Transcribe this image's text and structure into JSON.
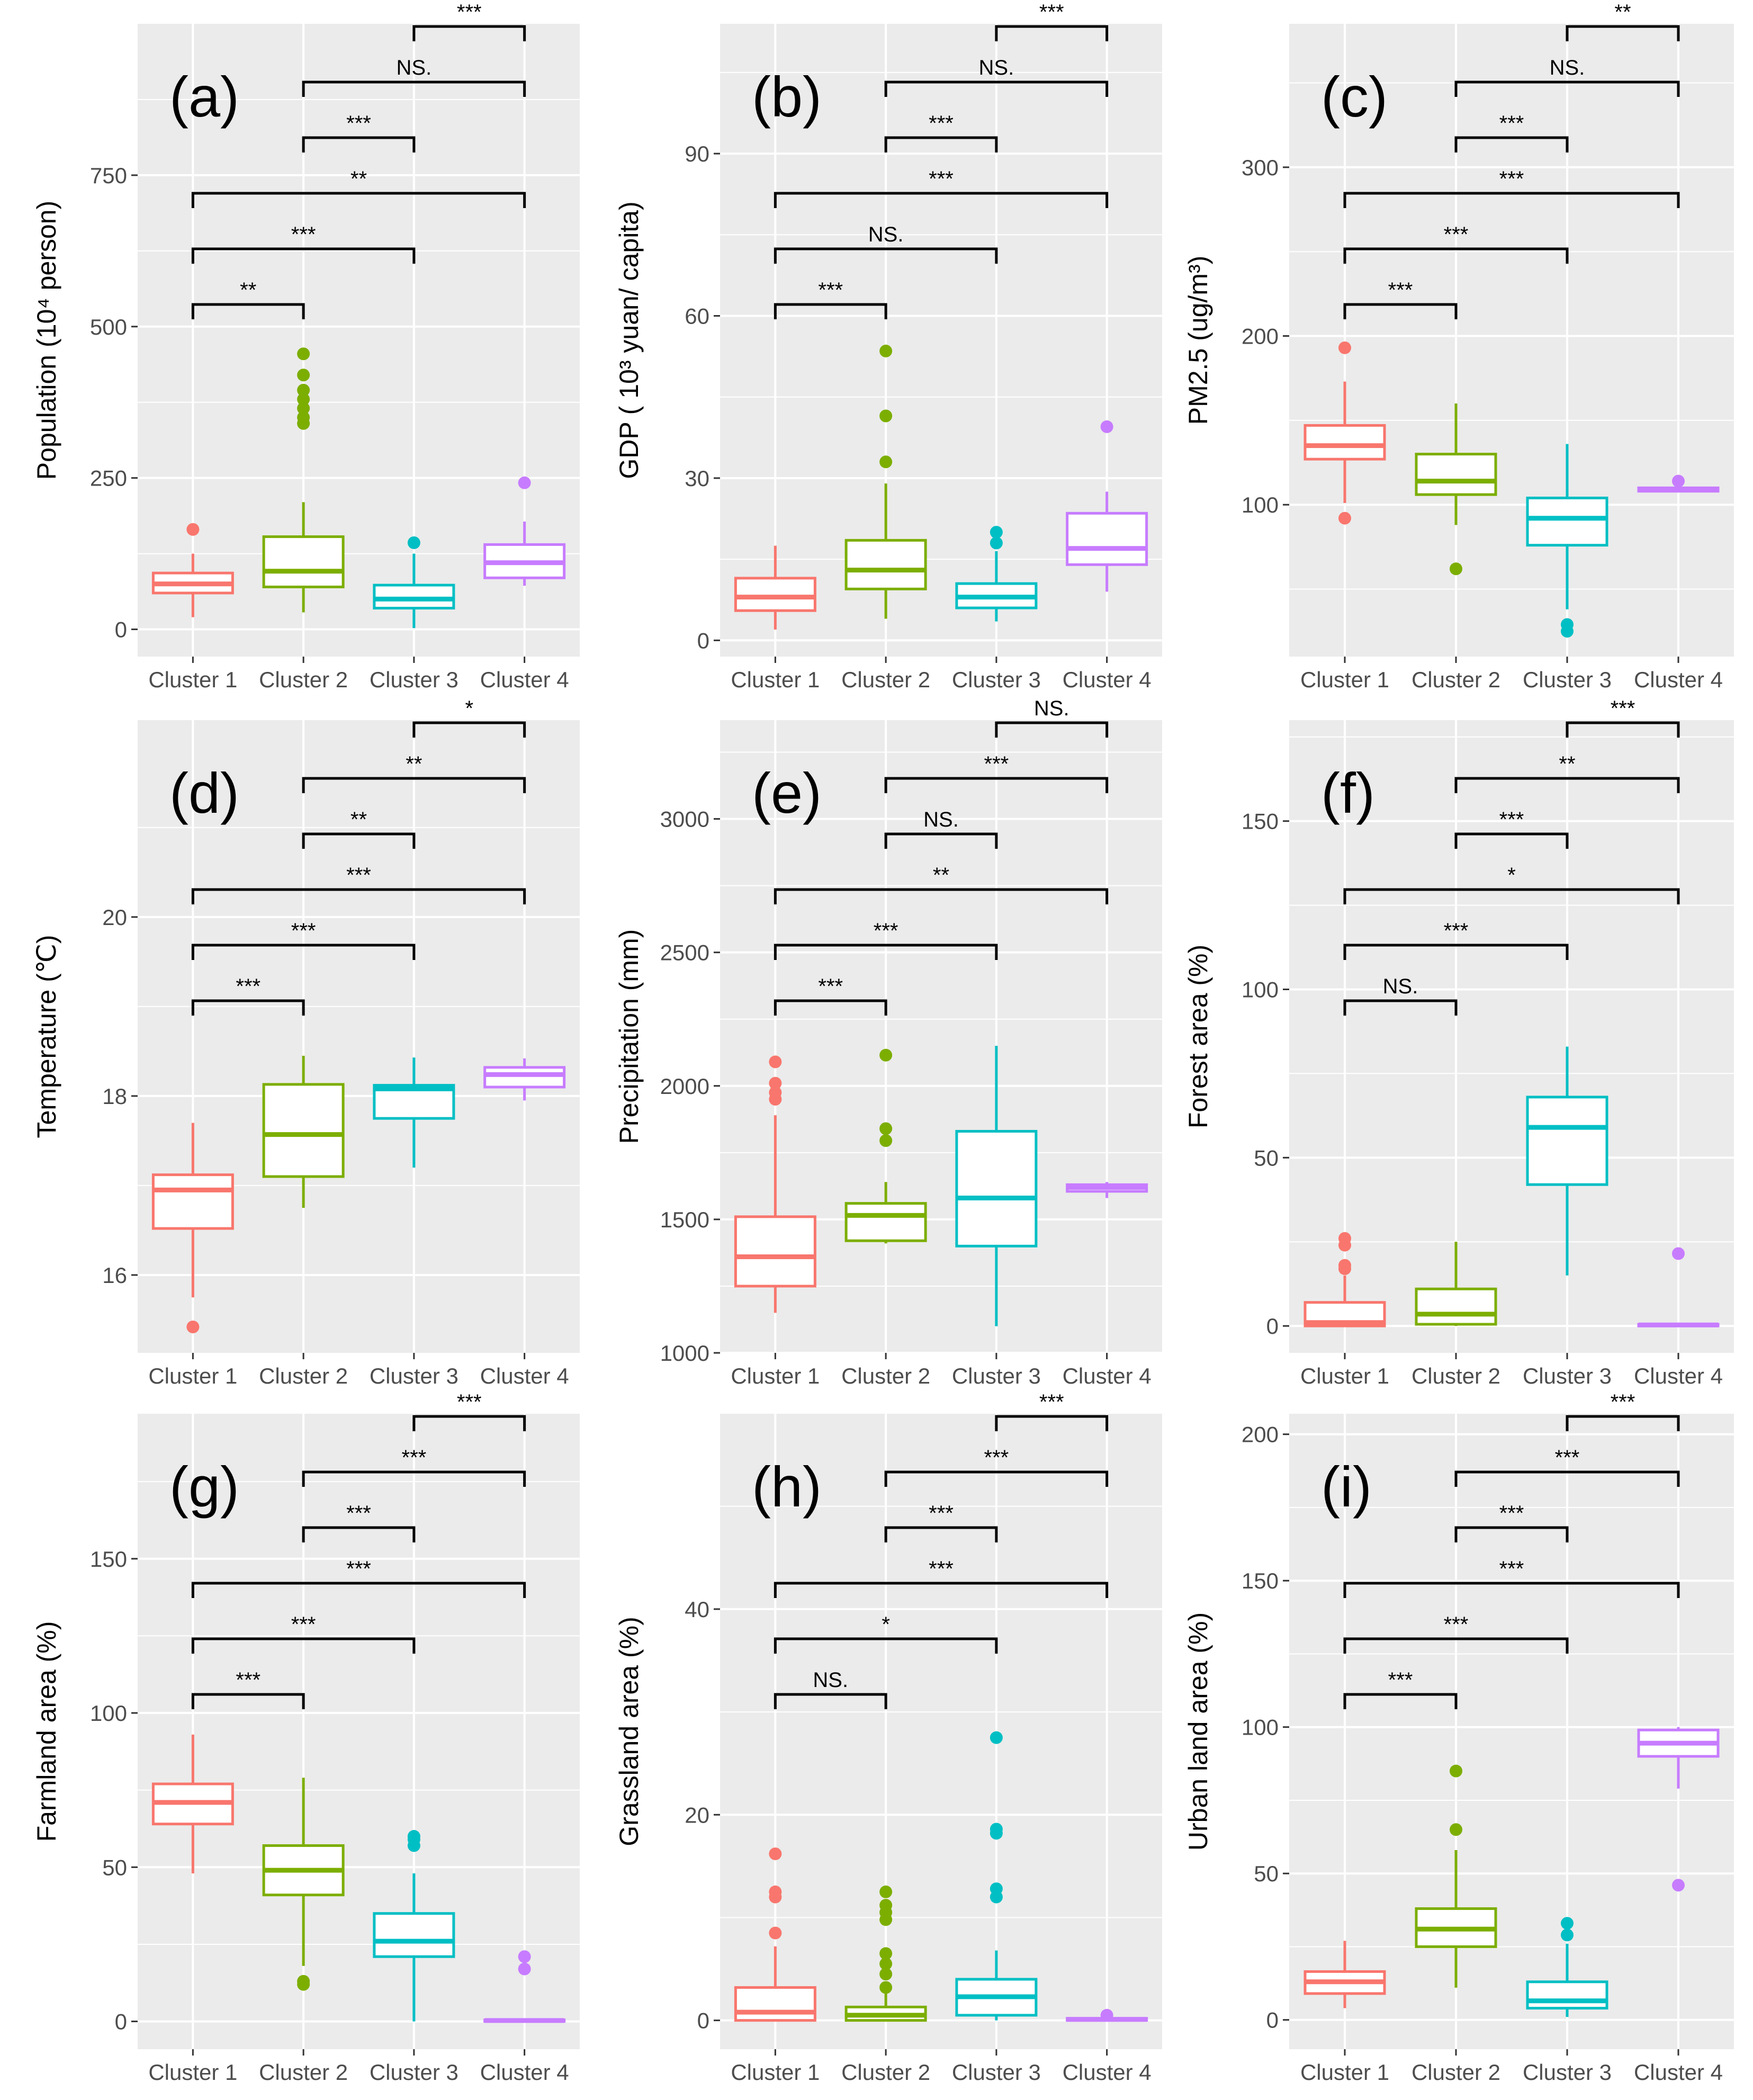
{
  "chart_data": {
    "type": "boxplot",
    "layout": "3x3 grid of box plots",
    "categories": [
      "Cluster 1",
      "Cluster 2",
      "Cluster 3",
      "Cluster 4"
    ],
    "colors": [
      "#f8766d",
      "#7cae00",
      "#00bfc4",
      "#c77cff"
    ],
    "panels": [
      {
        "id": "a",
        "label": "(a)",
        "ylabel": "Population (10⁴ person)",
        "ylim": [
          -45,
          1000
        ],
        "ticks": [
          0,
          250,
          500,
          750
        ],
        "tick_labels": [
          "0",
          "250",
          "500",
          "750"
        ],
        "boxes": [
          {
            "q1": 60,
            "median": 75,
            "q3": 93,
            "lower": 20,
            "upper": 125,
            "outliers": [
              165
            ]
          },
          {
            "q1": 70,
            "median": 96,
            "q3": 153,
            "lower": 28,
            "upper": 210,
            "outliers": [
              340,
              350,
              365,
              380,
              395,
              420,
              455
            ]
          },
          {
            "q1": 35,
            "median": 50,
            "q3": 73,
            "lower": 2,
            "upper": 125,
            "outliers": [
              143
            ]
          },
          {
            "q1": 85,
            "median": 110,
            "q3": 140,
            "lower": 72,
            "upper": 178,
            "outliers": [
              242
            ]
          }
        ],
        "comparisons": [
          {
            "groups": [
              1,
              2
            ],
            "label": "**",
            "level": 1
          },
          {
            "groups": [
              1,
              3
            ],
            "label": "***",
            "level": 2
          },
          {
            "groups": [
              1,
              4
            ],
            "label": "**",
            "level": 3
          },
          {
            "groups": [
              2,
              3
            ],
            "label": "***",
            "level": 4
          },
          {
            "groups": [
              2,
              4
            ],
            "label": "NS.",
            "level": 5
          },
          {
            "groups": [
              3,
              4
            ],
            "label": "***",
            "level": 6
          }
        ]
      },
      {
        "id": "b",
        "label": "(b)",
        "ylabel": "GDP ( 10³ yuan/ capita)",
        "ylim": [
          -3,
          114
        ],
        "ticks": [
          0,
          30,
          60,
          90
        ],
        "tick_labels": [
          "0",
          "30",
          "60",
          "90"
        ],
        "boxes": [
          {
            "q1": 5.5,
            "median": 8,
            "q3": 11.5,
            "lower": 2,
            "upper": 17.5,
            "outliers": []
          },
          {
            "q1": 9.5,
            "median": 13,
            "q3": 18.5,
            "lower": 4,
            "upper": 29,
            "outliers": [
              33,
              41.5,
              53.5
            ]
          },
          {
            "q1": 6,
            "median": 8,
            "q3": 10.5,
            "lower": 3.5,
            "upper": 16.5,
            "outliers": [
              18,
              20
            ]
          },
          {
            "q1": 14,
            "median": 17,
            "q3": 23.5,
            "lower": 9,
            "upper": 27.5,
            "outliers": [
              39.5
            ]
          }
        ],
        "comparisons": [
          {
            "groups": [
              1,
              2
            ],
            "label": "***",
            "level": 1
          },
          {
            "groups": [
              1,
              3
            ],
            "label": "NS.",
            "level": 2
          },
          {
            "groups": [
              1,
              4
            ],
            "label": "***",
            "level": 3
          },
          {
            "groups": [
              2,
              3
            ],
            "label": "***",
            "level": 4
          },
          {
            "groups": [
              2,
              4
            ],
            "label": "NS.",
            "level": 5
          },
          {
            "groups": [
              3,
              4
            ],
            "label": "***",
            "level": 6
          }
        ]
      },
      {
        "id": "c",
        "label": "(c)",
        "ylabel": "PM2.5 (ug/m³)",
        "ylim": [
          10,
          385
        ],
        "ticks": [
          100,
          200,
          300
        ],
        "tick_labels": [
          "100",
          "200",
          "300"
        ],
        "boxes": [
          {
            "q1": 127,
            "median": 135,
            "q3": 147,
            "lower": 101,
            "upper": 173,
            "outliers": [
              92,
              193
            ]
          },
          {
            "q1": 106,
            "median": 114,
            "q3": 130,
            "lower": 88,
            "upper": 160,
            "outliers": [
              62
            ]
          },
          {
            "q1": 76,
            "median": 92,
            "q3": 104,
            "lower": 38,
            "upper": 136,
            "outliers": [
              25,
              29
            ]
          },
          {
            "q1": 108,
            "median": 109,
            "q3": 110,
            "lower": 108,
            "upper": 110,
            "outliers": [
              114
            ]
          }
        ],
        "comparisons": [
          {
            "groups": [
              1,
              2
            ],
            "label": "***",
            "level": 1
          },
          {
            "groups": [
              1,
              3
            ],
            "label": "***",
            "level": 2
          },
          {
            "groups": [
              1,
              4
            ],
            "label": "***",
            "level": 3
          },
          {
            "groups": [
              2,
              3
            ],
            "label": "***",
            "level": 4
          },
          {
            "groups": [
              2,
              4
            ],
            "label": "NS.",
            "level": 5
          },
          {
            "groups": [
              3,
              4
            ],
            "label": "**",
            "level": 6
          }
        ]
      },
      {
        "id": "d",
        "label": "(d)",
        "ylabel": "Temperature (℃)",
        "ylim": [
          15.13,
          22.2
        ],
        "ticks": [
          16,
          18,
          20
        ],
        "tick_labels": [
          "16",
          "18",
          "20"
        ],
        "boxes": [
          {
            "q1": 16.52,
            "median": 16.95,
            "q3": 17.12,
            "lower": 15.75,
            "upper": 17.7,
            "outliers": [
              15.42
            ]
          },
          {
            "q1": 17.1,
            "median": 17.57,
            "q3": 18.13,
            "lower": 16.75,
            "upper": 18.45,
            "outliers": []
          },
          {
            "q1": 17.75,
            "median": 18.08,
            "q3": 18.12,
            "lower": 17.2,
            "upper": 18.43,
            "outliers": []
          },
          {
            "q1": 18.1,
            "median": 18.24,
            "q3": 18.32,
            "lower": 17.95,
            "upper": 18.42,
            "outliers": []
          }
        ],
        "comparisons": [
          {
            "groups": [
              1,
              2
            ],
            "label": "***",
            "level": 1
          },
          {
            "groups": [
              1,
              3
            ],
            "label": "***",
            "level": 2
          },
          {
            "groups": [
              1,
              4
            ],
            "label": "***",
            "level": 3
          },
          {
            "groups": [
              2,
              3
            ],
            "label": "**",
            "level": 4
          },
          {
            "groups": [
              2,
              4
            ],
            "label": "**",
            "level": 5
          },
          {
            "groups": [
              3,
              4
            ],
            "label": "*",
            "level": 6
          }
        ]
      },
      {
        "id": "e",
        "label": "(e)",
        "ylabel": "Precipitation (mm)",
        "ylim": [
          1000,
          3370
        ],
        "ticks": [
          1000,
          1500,
          2000,
          2500,
          3000
        ],
        "tick_labels": [
          "1000",
          "1500",
          "2000",
          "2500",
          "3000"
        ],
        "boxes": [
          {
            "q1": 1250,
            "median": 1360,
            "q3": 1510,
            "lower": 1150,
            "upper": 1890,
            "outliers": [
              1950,
              1975,
              2010,
              2090
            ]
          },
          {
            "q1": 1420,
            "median": 1515,
            "q3": 1560,
            "lower": 1410,
            "upper": 1640,
            "outliers": [
              1795,
              1840,
              2115
            ]
          },
          {
            "q1": 1400,
            "median": 1580,
            "q3": 1830,
            "lower": 1100,
            "upper": 2150,
            "outliers": []
          },
          {
            "q1": 1605,
            "median": 1620,
            "q3": 1630,
            "lower": 1580,
            "upper": 1640,
            "outliers": []
          }
        ],
        "comparisons": [
          {
            "groups": [
              1,
              2
            ],
            "label": "***",
            "level": 1
          },
          {
            "groups": [
              1,
              3
            ],
            "label": "***",
            "level": 2
          },
          {
            "groups": [
              1,
              4
            ],
            "label": "**",
            "level": 3
          },
          {
            "groups": [
              2,
              3
            ],
            "label": "NS.",
            "level": 4
          },
          {
            "groups": [
              2,
              4
            ],
            "label": "***",
            "level": 5
          },
          {
            "groups": [
              3,
              4
            ],
            "label": "NS.",
            "level": 6
          }
        ]
      },
      {
        "id": "f",
        "label": "(f)",
        "ylabel": "Forest area (%)",
        "ylim": [
          -8,
          180
        ],
        "ticks": [
          0,
          50,
          100,
          150
        ],
        "tick_labels": [
          "0",
          "50",
          "100",
          "150"
        ],
        "boxes": [
          {
            "q1": 0,
            "median": 1,
            "q3": 7,
            "lower": 0,
            "upper": 15,
            "outliers": [
              17,
              18,
              24,
              26
            ]
          },
          {
            "q1": 0.5,
            "median": 3.5,
            "q3": 11,
            "lower": 0,
            "upper": 25,
            "outliers": []
          },
          {
            "q1": 42,
            "median": 59,
            "q3": 68,
            "lower": 15,
            "upper": 83,
            "outliers": []
          },
          {
            "q1": 0,
            "median": 0.3,
            "q3": 0.5,
            "lower": 0,
            "upper": 0.5,
            "outliers": [
              21.5
            ]
          }
        ],
        "comparisons": [
          {
            "groups": [
              1,
              2
            ],
            "label": "NS.",
            "level": 1
          },
          {
            "groups": [
              1,
              3
            ],
            "label": "***",
            "level": 2
          },
          {
            "groups": [
              1,
              4
            ],
            "label": "*",
            "level": 3
          },
          {
            "groups": [
              2,
              3
            ],
            "label": "***",
            "level": 4
          },
          {
            "groups": [
              2,
              4
            ],
            "label": "**",
            "level": 5
          },
          {
            "groups": [
              3,
              4
            ],
            "label": "***",
            "level": 6
          }
        ]
      },
      {
        "id": "g",
        "label": "(g)",
        "ylabel": "Farmland area (%)",
        "ylim": [
          -9,
          197
        ],
        "ticks": [
          0,
          50,
          100,
          150
        ],
        "tick_labels": [
          "0",
          "50",
          "100",
          "150"
        ],
        "boxes": [
          {
            "q1": 64,
            "median": 71,
            "q3": 77,
            "lower": 48,
            "upper": 93,
            "outliers": []
          },
          {
            "q1": 41,
            "median": 49,
            "q3": 57,
            "lower": 18,
            "upper": 79,
            "outliers": [
              12,
              13
            ]
          },
          {
            "q1": 21,
            "median": 26,
            "q3": 35,
            "lower": 0,
            "upper": 48,
            "outliers": [
              57,
              59,
              60
            ]
          },
          {
            "q1": 0,
            "median": 0.3,
            "q3": 0.5,
            "lower": 0,
            "upper": 0.5,
            "outliers": [
              17,
              21
            ]
          }
        ],
        "comparisons": [
          {
            "groups": [
              1,
              2
            ],
            "label": "***",
            "level": 1
          },
          {
            "groups": [
              1,
              3
            ],
            "label": "***",
            "level": 2
          },
          {
            "groups": [
              1,
              4
            ],
            "label": "***",
            "level": 3
          },
          {
            "groups": [
              2,
              3
            ],
            "label": "***",
            "level": 4
          },
          {
            "groups": [
              2,
              4
            ],
            "label": "***",
            "level": 5
          },
          {
            "groups": [
              3,
              4
            ],
            "label": "***",
            "level": 6
          }
        ]
      },
      {
        "id": "h",
        "label": "(h)",
        "ylabel": "Grassland area (%)",
        "ylim": [
          -2.8,
          59
        ],
        "ticks": [
          0,
          20,
          40
        ],
        "tick_labels": [
          "0",
          "20",
          "40"
        ],
        "boxes": [
          {
            "q1": 0,
            "median": 0.8,
            "q3": 3.2,
            "lower": 0,
            "upper": 7.2,
            "outliers": [
              8.5,
              12,
              12.5,
              16.2
            ]
          },
          {
            "q1": 0,
            "median": 0.5,
            "q3": 1.3,
            "lower": 0,
            "upper": 2.8,
            "outliers": [
              3.2,
              4.5,
              5.5,
              6.5,
              9.8,
              10.5,
              11.2,
              12.5
            ]
          },
          {
            "q1": 0.5,
            "median": 2.3,
            "q3": 4,
            "lower": 0,
            "upper": 6.8,
            "outliers": [
              12,
              12.8,
              18.2,
              18.6,
              27.5
            ]
          },
          {
            "q1": 0,
            "median": 0.1,
            "q3": 0.2,
            "lower": 0,
            "upper": 0.2,
            "outliers": [
              0.5
            ]
          }
        ],
        "comparisons": [
          {
            "groups": [
              1,
              2
            ],
            "label": "NS.",
            "level": 1
          },
          {
            "groups": [
              1,
              3
            ],
            "label": "*",
            "level": 2
          },
          {
            "groups": [
              1,
              4
            ],
            "label": "***",
            "level": 3
          },
          {
            "groups": [
              2,
              3
            ],
            "label": "***",
            "level": 4
          },
          {
            "groups": [
              2,
              4
            ],
            "label": "***",
            "level": 5
          },
          {
            "groups": [
              3,
              4
            ],
            "label": "***",
            "level": 6
          }
        ]
      },
      {
        "id": "i",
        "label": "(i)",
        "ylabel": "Urban land area (%)",
        "ylim": [
          -10,
          207
        ],
        "ticks": [
          0,
          50,
          100,
          150,
          200
        ],
        "tick_labels": [
          "0",
          "50",
          "100",
          "150",
          "200"
        ],
        "boxes": [
          {
            "q1": 9,
            "median": 13,
            "q3": 16.5,
            "lower": 4,
            "upper": 27,
            "outliers": []
          },
          {
            "q1": 25,
            "median": 31,
            "q3": 38,
            "lower": 11,
            "upper": 58,
            "outliers": [
              65,
              85
            ]
          },
          {
            "q1": 4,
            "median": 6.5,
            "q3": 13,
            "lower": 1,
            "upper": 26,
            "outliers": [
              29,
              33
            ]
          },
          {
            "q1": 90,
            "median": 94.5,
            "q3": 99,
            "lower": 79,
            "upper": 100,
            "outliers": [
              46
            ]
          }
        ],
        "comparisons": [
          {
            "groups": [
              1,
              2
            ],
            "label": "***",
            "level": 1
          },
          {
            "groups": [
              1,
              3
            ],
            "label": "***",
            "level": 2
          },
          {
            "groups": [
              1,
              4
            ],
            "label": "***",
            "level": 3
          },
          {
            "groups": [
              2,
              3
            ],
            "label": "***",
            "level": 4
          },
          {
            "groups": [
              2,
              4
            ],
            "label": "***",
            "level": 5
          },
          {
            "groups": [
              3,
              4
            ],
            "label": "***",
            "level": 6
          }
        ]
      }
    ]
  }
}
